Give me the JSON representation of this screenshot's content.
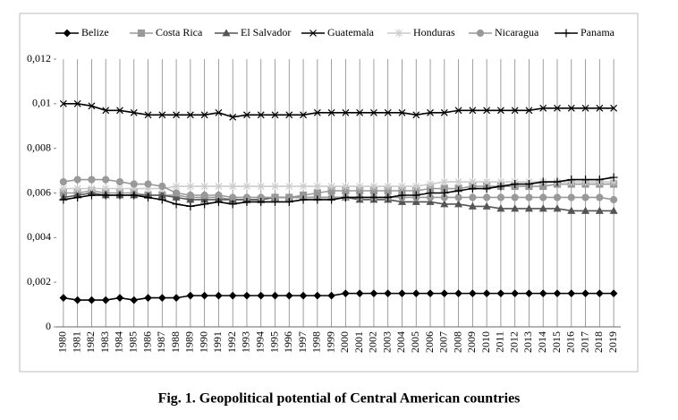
{
  "chart_data": {
    "type": "line",
    "caption": "Fig. 1. Geopolitical potential of Central American countries",
    "categories": [
      "1980",
      "1981",
      "1982",
      "1983",
      "1984",
      "1985",
      "1986",
      "1987",
      "1988",
      "1989",
      "1990",
      "1991",
      "1992",
      "1993",
      "1994",
      "1995",
      "1996",
      "1997",
      "1998",
      "1999",
      "2000",
      "2001",
      "2002",
      "2003",
      "2004",
      "2005",
      "2006",
      "2007",
      "2008",
      "2009",
      "2010",
      "2011",
      "2012",
      "2013",
      "2014",
      "2015",
      "2016",
      "2017",
      "2018",
      "2019"
    ],
    "ylim": [
      0,
      0.012
    ],
    "yticks": [
      0,
      {
        "value": 0.002,
        "label": "0,002"
      },
      {
        "value": 0.004,
        "label": "0,004"
      },
      {
        "value": 0.006,
        "label": "0,006"
      },
      {
        "value": 0.008,
        "label": "0,008"
      },
      {
        "value": 0.01,
        "label": "0,01"
      },
      {
        "value": 0.012,
        "label": "0,012"
      }
    ],
    "grid": "x",
    "legend": "top",
    "series": [
      {
        "name": "Belize",
        "color": "#000000",
        "marker": "diamond",
        "values": [
          0.0013,
          0.0012,
          0.0012,
          0.0012,
          0.0013,
          0.0012,
          0.0013,
          0.0013,
          0.0013,
          0.0014,
          0.0014,
          0.0014,
          0.0014,
          0.0014,
          0.0014,
          0.0014,
          0.0014,
          0.0014,
          0.0014,
          0.0014,
          0.0015,
          0.0015,
          0.0015,
          0.0015,
          0.0015,
          0.0015,
          0.0015,
          0.0015,
          0.0015,
          0.0015,
          0.0015,
          0.0015,
          0.0015,
          0.0015,
          0.0015,
          0.0015,
          0.0015,
          0.0015,
          0.0015,
          0.0015
        ]
      },
      {
        "name": "Costa Rica",
        "color": "#999999",
        "marker": "square",
        "values": [
          0.006,
          0.006,
          0.0061,
          0.006,
          0.006,
          0.006,
          0.0059,
          0.0059,
          0.0059,
          0.0058,
          0.0058,
          0.0058,
          0.0057,
          0.0057,
          0.0057,
          0.0058,
          0.0058,
          0.0059,
          0.006,
          0.0061,
          0.0061,
          0.0061,
          0.0061,
          0.0061,
          0.0061,
          0.0061,
          0.0062,
          0.0062,
          0.0062,
          0.0063,
          0.0063,
          0.0063,
          0.0063,
          0.0063,
          0.0063,
          0.0064,
          0.0064,
          0.0064,
          0.0064,
          0.0064
        ]
      },
      {
        "name": "El Salvador",
        "color": "#555555",
        "marker": "triangle",
        "values": [
          0.0058,
          0.0059,
          0.006,
          0.0059,
          0.0059,
          0.0059,
          0.0059,
          0.0059,
          0.0058,
          0.0057,
          0.0057,
          0.0057,
          0.0057,
          0.0057,
          0.0057,
          0.0058,
          0.0058,
          0.0058,
          0.0058,
          0.0058,
          0.0058,
          0.0057,
          0.0057,
          0.0057,
          0.0056,
          0.0056,
          0.0056,
          0.0055,
          0.0055,
          0.0054,
          0.0054,
          0.0053,
          0.0053,
          0.0053,
          0.0053,
          0.0053,
          0.0052,
          0.0052,
          0.0052,
          0.0052
        ]
      },
      {
        "name": "Guatemala",
        "color": "#000000",
        "marker": "x",
        "values": [
          0.01,
          0.01,
          0.0099,
          0.0097,
          0.0097,
          0.0096,
          0.0095,
          0.0095,
          0.0095,
          0.0095,
          0.0095,
          0.0096,
          0.0094,
          0.0095,
          0.0095,
          0.0095,
          0.0095,
          0.0095,
          0.0096,
          0.0096,
          0.0096,
          0.0096,
          0.0096,
          0.0096,
          0.0096,
          0.0095,
          0.0096,
          0.0096,
          0.0097,
          0.0097,
          0.0097,
          0.0097,
          0.0097,
          0.0097,
          0.0098,
          0.0098,
          0.0098,
          0.0098,
          0.0098,
          0.0098
        ]
      },
      {
        "name": "Honduras",
        "color": "#cccccc",
        "marker": "asterisk",
        "values": [
          0.0062,
          0.0062,
          0.0062,
          0.0062,
          0.0062,
          0.0062,
          0.0062,
          0.0062,
          0.0063,
          0.0063,
          0.0063,
          0.0063,
          0.0063,
          0.0063,
          0.0063,
          0.0063,
          0.0063,
          0.0063,
          0.0063,
          0.0063,
          0.0063,
          0.0063,
          0.0063,
          0.0063,
          0.0063,
          0.0063,
          0.0064,
          0.0065,
          0.0065,
          0.0065,
          0.0065,
          0.0065,
          0.0065,
          0.0065,
          0.0065,
          0.0065,
          0.0065,
          0.0065,
          0.0065,
          0.0065
        ]
      },
      {
        "name": "Nicaragua",
        "color": "#999999",
        "marker": "circle",
        "values": [
          0.0065,
          0.0066,
          0.0066,
          0.0066,
          0.0065,
          0.0064,
          0.0064,
          0.0063,
          0.006,
          0.0059,
          0.0059,
          0.0059,
          0.0058,
          0.0058,
          0.0058,
          0.0058,
          0.0058,
          0.0058,
          0.0058,
          0.0058,
          0.0058,
          0.0058,
          0.0058,
          0.0058,
          0.0058,
          0.0058,
          0.0058,
          0.0058,
          0.0058,
          0.0058,
          0.0058,
          0.0058,
          0.0058,
          0.0058,
          0.0058,
          0.0058,
          0.0058,
          0.0058,
          0.0058,
          0.0057
        ]
      },
      {
        "name": "Panama",
        "color": "#000000",
        "marker": "plus",
        "values": [
          0.0057,
          0.0058,
          0.0059,
          0.0059,
          0.0059,
          0.0059,
          0.0058,
          0.0057,
          0.0055,
          0.0054,
          0.0055,
          0.0056,
          0.0055,
          0.0056,
          0.0056,
          0.0056,
          0.0056,
          0.0057,
          0.0057,
          0.0057,
          0.0058,
          0.0058,
          0.0058,
          0.0058,
          0.0059,
          0.0059,
          0.006,
          0.006,
          0.0061,
          0.0062,
          0.0062,
          0.0063,
          0.0064,
          0.0064,
          0.0065,
          0.0065,
          0.0066,
          0.0066,
          0.0066,
          0.0067
        ]
      }
    ]
  }
}
